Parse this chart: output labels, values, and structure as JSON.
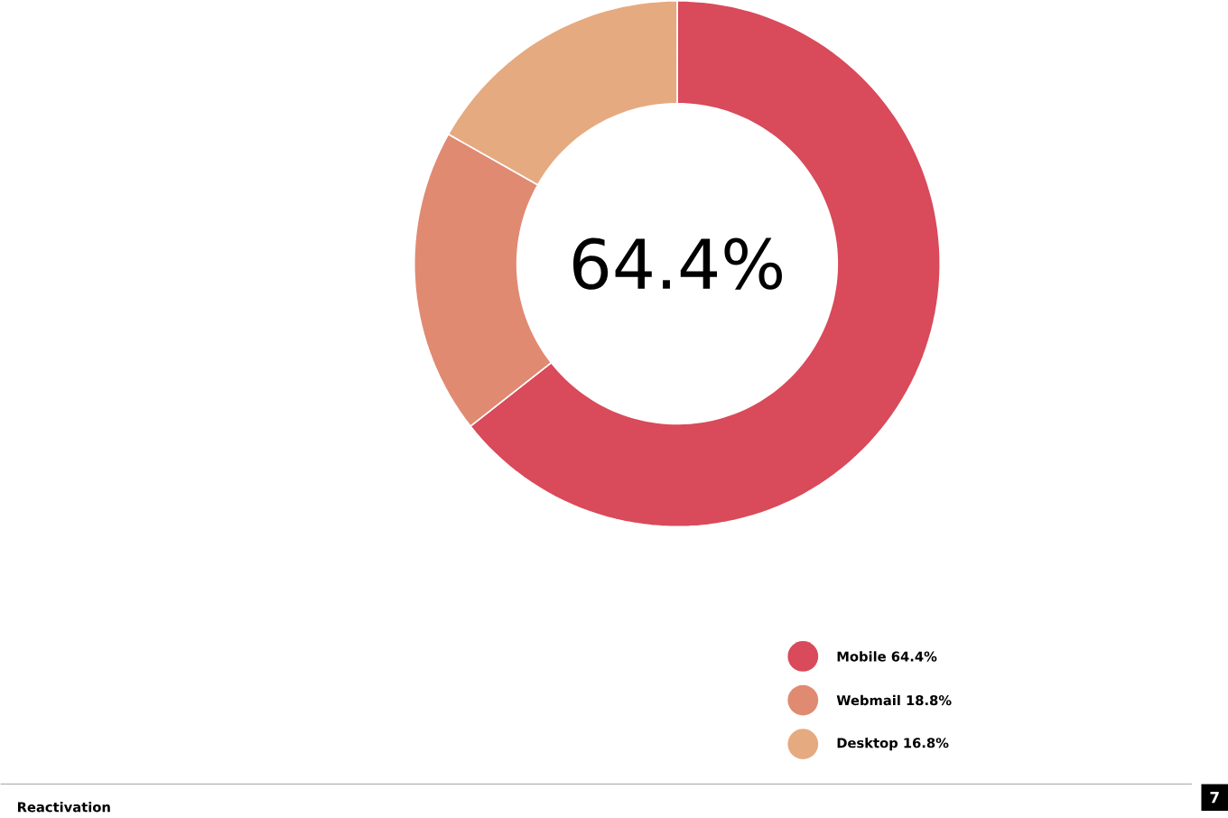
{
  "chart_data": {
    "type": "donut",
    "categories": [
      "Mobile 64.4%",
      "Webmail 18.8%",
      "Desktop 16.8%"
    ],
    "values": [
      64.4,
      18.8,
      16.8
    ],
    "colors": [
      "#d94a5a",
      "#e08a72",
      "#e6aa80"
    ],
    "legend": "bottom",
    "annotations": [
      "64.4%",
      "Reactivation",
      "7"
    ]
  }
}
